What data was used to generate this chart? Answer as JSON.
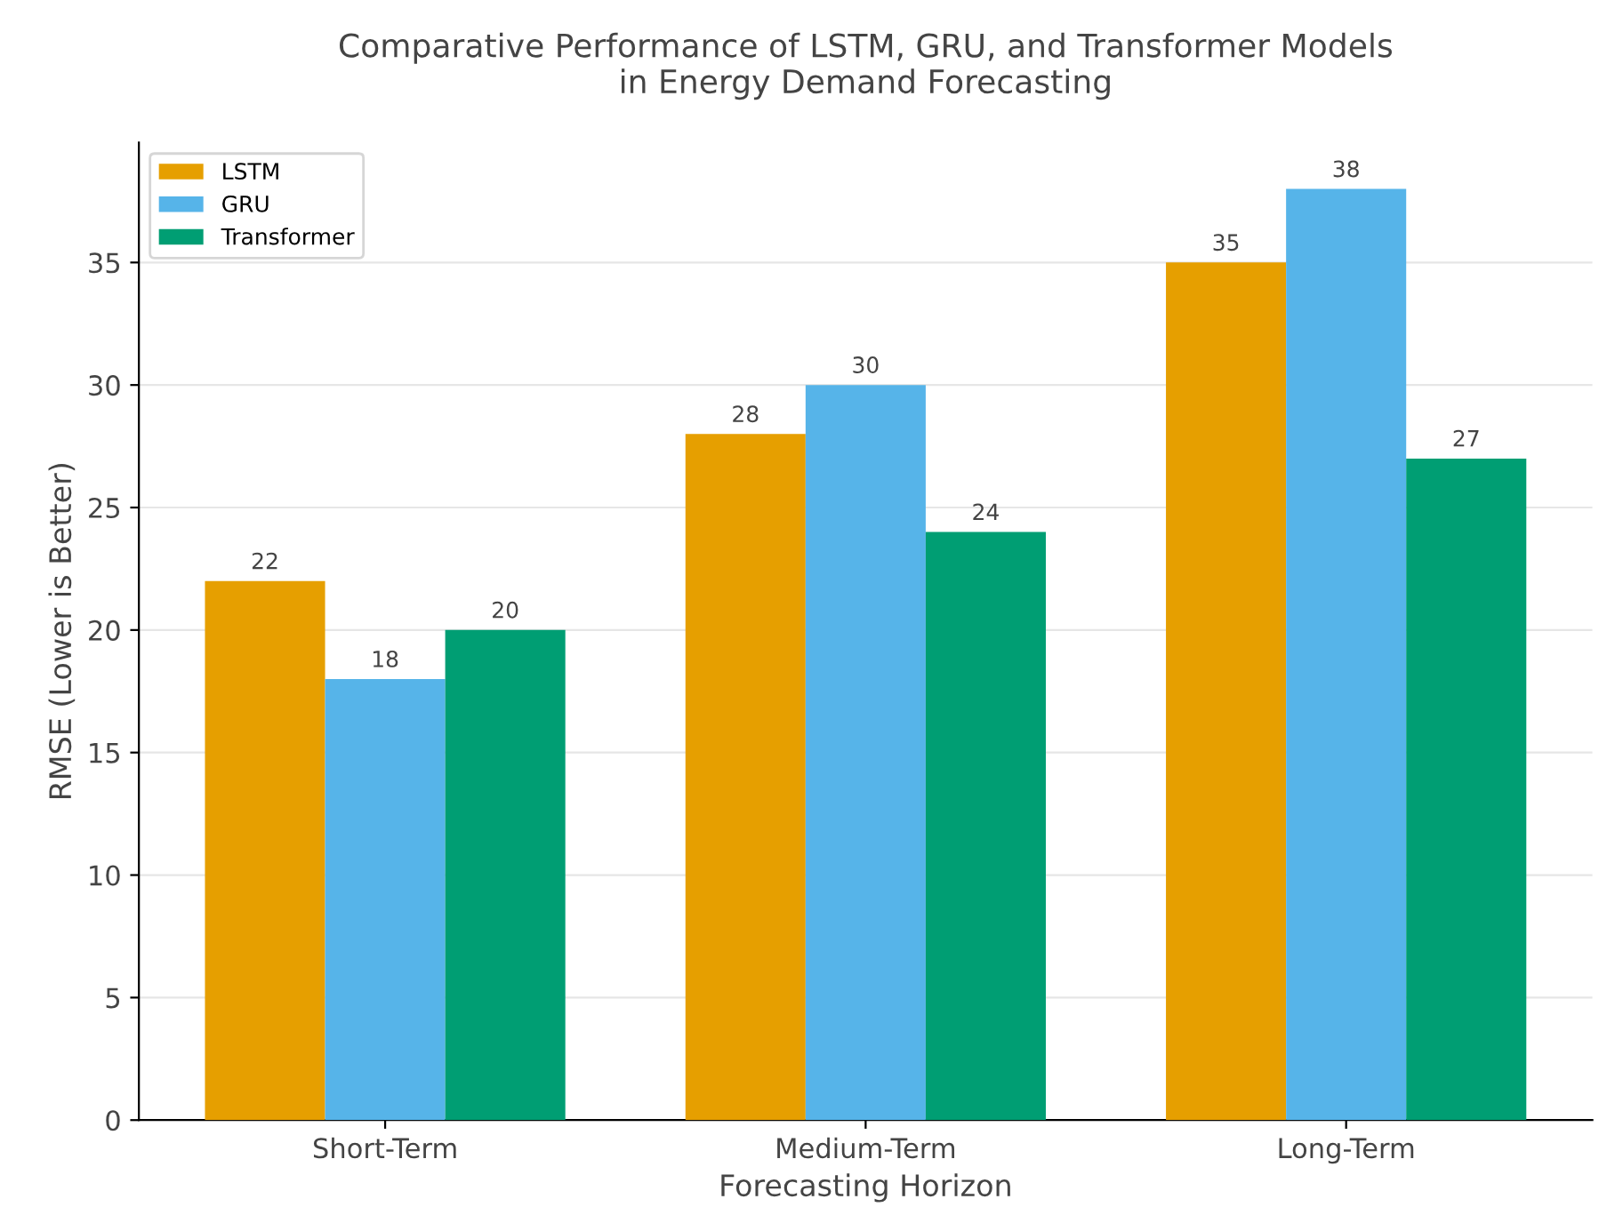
{
  "chart_data": {
    "type": "bar",
    "title": "Comparative Performance of LSTM, GRU, and Transformer Models\nin Energy Demand Forecasting",
    "xlabel": "Forecasting Horizon",
    "ylabel": "RMSE (Lower is Better)",
    "categories": [
      "Short-Term",
      "Medium-Term",
      "Long-Term"
    ],
    "series": [
      {
        "name": "LSTM",
        "color": "#e69f00",
        "values": [
          22,
          28,
          35
        ]
      },
      {
        "name": "GRU",
        "color": "#56b4e9",
        "values": [
          18,
          30,
          38
        ]
      },
      {
        "name": "Transformer",
        "color": "#009e73",
        "values": [
          20,
          24,
          27
        ]
      }
    ],
    "ylim": [
      0,
      39.9
    ],
    "yticks": [
      0,
      5,
      10,
      15,
      20,
      25,
      30,
      35
    ],
    "grid": "y",
    "legend": "top left",
    "data_labels": true
  }
}
